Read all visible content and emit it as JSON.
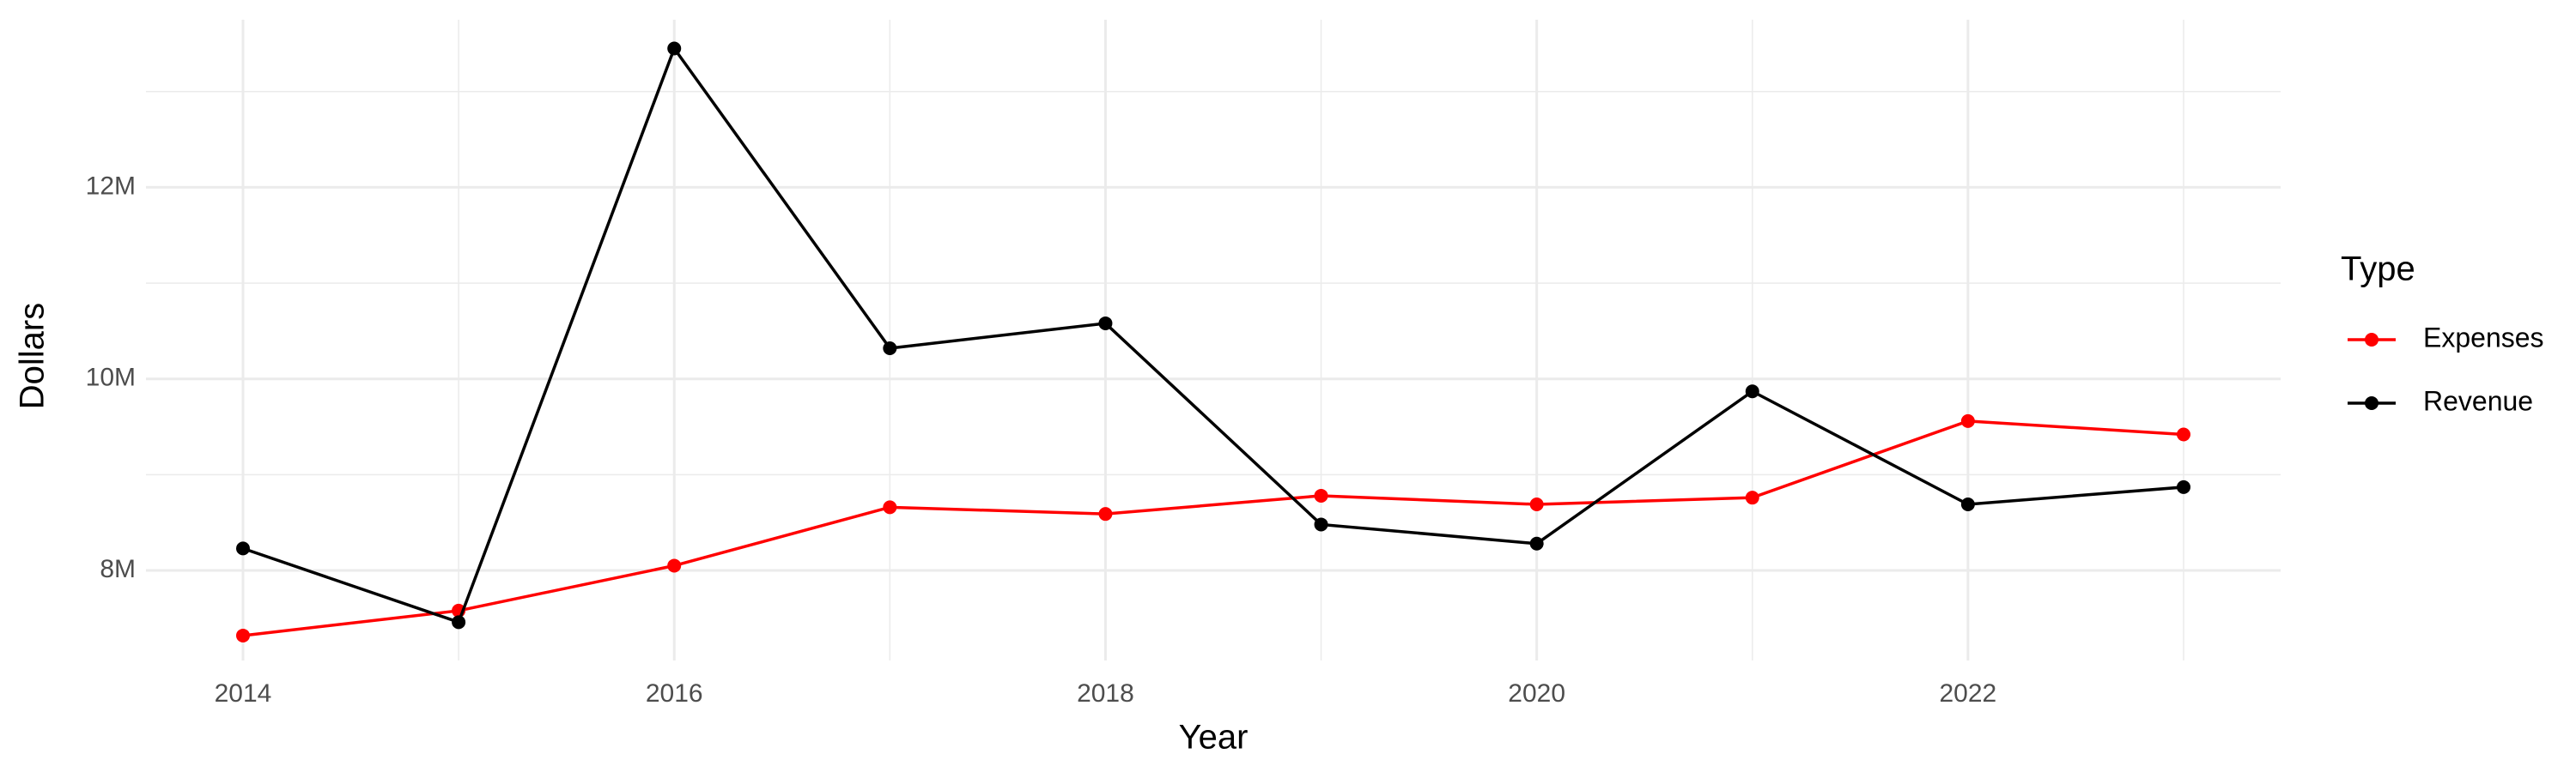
{
  "chart_data": {
    "type": "line",
    "x_label": "Year",
    "y_label": "Dollars",
    "legend_title": "Type",
    "x": [
      2014,
      2015,
      2016,
      2017,
      2018,
      2019,
      2020,
      2021,
      2022,
      2023
    ],
    "series": [
      {
        "name": "Expenses",
        "color": "#ff0000",
        "values": [
          7320000,
          7580000,
          8050000,
          8660000,
          8590000,
          8780000,
          8690000,
          8760000,
          9560000,
          9420000
        ]
      },
      {
        "name": "Revenue",
        "color": "#000000",
        "values": [
          8230000,
          7460000,
          13450000,
          10320000,
          10580000,
          8480000,
          8280000,
          9870000,
          8690000,
          8870000
        ]
      }
    ],
    "xlim": [
      2013.55,
      2023.45
    ],
    "xticks": [
      2014,
      2016,
      2018,
      2020,
      2022
    ],
    "ylim": [
      7060000,
      13750000
    ],
    "yticks": [
      {
        "value": 8000000,
        "label": "8M"
      },
      {
        "value": 10000000,
        "label": "10M"
      },
      {
        "value": 12000000,
        "label": "12M"
      }
    ],
    "grid": true,
    "legend": "right"
  }
}
